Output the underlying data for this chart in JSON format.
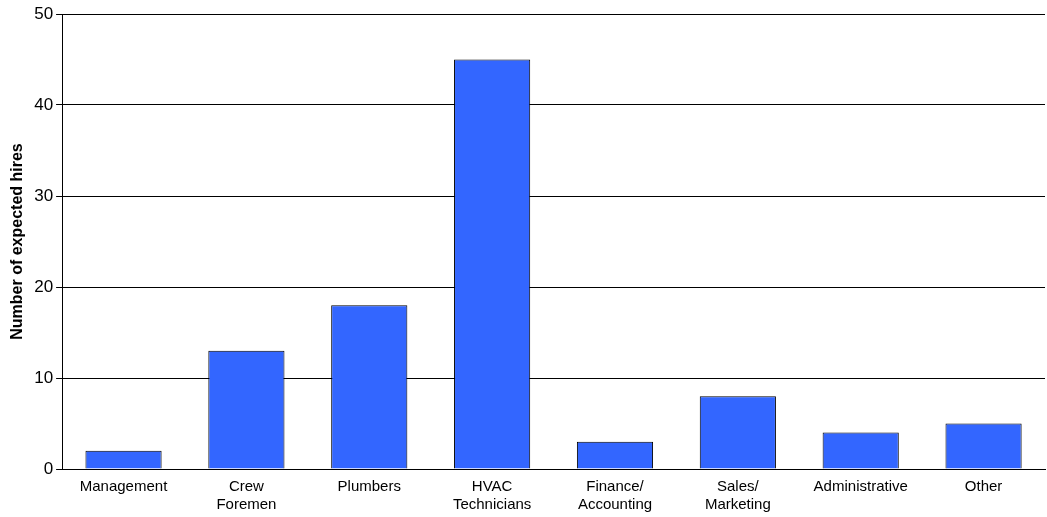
{
  "chart_data": {
    "type": "bar",
    "ylabel": "Number of expected hires",
    "categories": [
      "Management",
      "Crew\nForemen",
      "Plumbers",
      "HVAC\nTechnicians",
      "Finance/\nAccounting",
      "Sales/\nMarketing",
      "Administrative",
      "Other"
    ],
    "values": [
      2,
      13,
      18,
      45,
      3,
      8,
      4,
      5
    ],
    "color": "#3366ff",
    "ylim": [
      0,
      50
    ],
    "yticks": [
      0,
      10,
      20,
      30,
      40,
      50
    ],
    "grid": "y",
    "legend": false
  }
}
